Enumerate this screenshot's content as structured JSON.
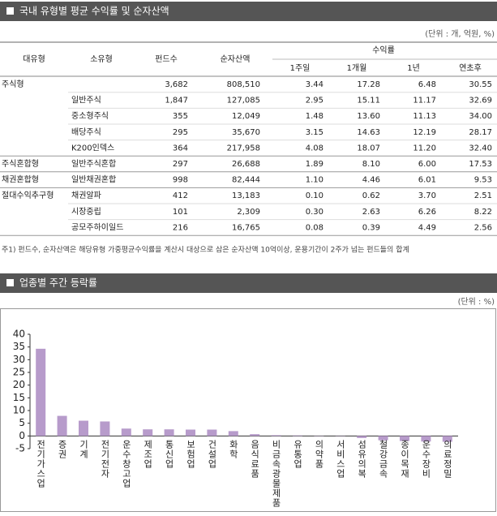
{
  "header": {
    "title": "국내 유형별 평균 수익률 및 순자산액",
    "unit": "(단위 : 개, 억원, %)"
  },
  "table": {
    "columns": [
      "대유형",
      "소유형",
      "펀드수",
      "순자산액",
      "수익률"
    ],
    "subcolumns": [
      "1주일",
      "1개월",
      "1년",
      "연초후"
    ],
    "rows": [
      [
        "주식형",
        null,
        "3,682",
        "808,510",
        "3.44",
        "17.28",
        "6.48",
        "30.55"
      ],
      [
        null,
        "일반주식",
        "1,847",
        "127,085",
        "2.95",
        "15.11",
        "11.17",
        "32.69"
      ],
      [
        null,
        "중소형주식",
        "355",
        "12,049",
        "1.48",
        "13.60",
        "11.13",
        "34.00"
      ],
      [
        null,
        "배당주식",
        "295",
        "35,670",
        "3.15",
        "14.63",
        "12.19",
        "28.17"
      ],
      [
        null,
        "K200인덱스",
        "364",
        "217,958",
        "4.08",
        "18.07",
        "11.20",
        "32.40"
      ],
      [
        "주식혼합형",
        "일반주식혼합",
        "297",
        "26,688",
        "1.89",
        "8.10",
        "6.00",
        "17.53"
      ],
      [
        "채권혼합형",
        "일반채권혼합",
        "998",
        "82,444",
        "1.10",
        "4.46",
        "6.01",
        "9.53"
      ],
      [
        "절대수익추구형",
        "채권알파",
        "412",
        "13,183",
        "0.10",
        "0.62",
        "3.70",
        "2.51"
      ],
      [
        null,
        "시장중립",
        "101",
        "2,309",
        "0.30",
        "2.63",
        "6.26",
        "8.22"
      ],
      [
        null,
        "공모주하이일드",
        "216",
        "16,765",
        "0.08",
        "0.39",
        "4.49",
        "2.56"
      ]
    ]
  },
  "footnote": "주1) 펀드수, 순자산액은 해당유형 가중평균수익률을 계산시 대상으로 삼은 순자산액 10억이상, 운용기간이 2주가 넘는 펀드들의 합계",
  "chart_data": {
    "type": "bar",
    "title": "업종별 주간 등락률",
    "unit": "(단위 : %)",
    "categories": [
      "전기가스업",
      "증권",
      "기계",
      "전기전자",
      "운수창고업",
      "제조업",
      "통신업",
      "보험업",
      "건설업",
      "화학",
      "음식료품",
      "비금속광물제품",
      "유통업",
      "의약품",
      "서비스업",
      "섬유의복",
      "철강금속",
      "종이목재",
      "운수장비",
      "의료정밀"
    ],
    "values": [
      34.3,
      7.9,
      6.0,
      5.7,
      2.9,
      2.6,
      2.6,
      2.5,
      2.5,
      1.9,
      0.7,
      0.3,
      0.2,
      0.1,
      -0.1,
      -0.8,
      -1.7,
      -2.0,
      -2.2,
      -2.3
    ],
    "color": "#b79bcb",
    "ylim": [
      -5,
      40
    ],
    "yticks": [
      -5,
      0,
      5,
      10,
      15,
      20,
      25,
      30,
      35,
      40
    ],
    "grid": false
  }
}
